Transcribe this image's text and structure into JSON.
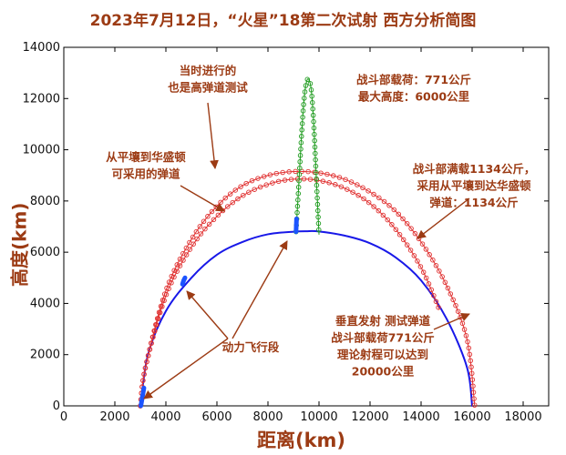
{
  "chart_data": {
    "type": "line",
    "title": "2023年7月12日，“火星”18第二次试射 西方分析简图",
    "xlabel": "距离(km)",
    "ylabel": "高度(km)",
    "xlim": [
      0,
      19000
    ],
    "ylim": [
      0,
      14000
    ],
    "xticks": [
      0,
      2000,
      4000,
      6000,
      8000,
      10000,
      12000,
      14000,
      16000,
      18000
    ],
    "yticks": [
      0,
      2000,
      4000,
      6000,
      8000,
      10000,
      12000,
      14000
    ],
    "grid": false,
    "series": [
      {
        "color": "#1818e8",
        "style": "solid",
        "x": [
          3000,
          3300,
          4000,
          5000,
          6000,
          7000,
          8000,
          9000,
          9500,
          10000,
          11000,
          12000,
          13000,
          14000,
          15000,
          15800,
          16000
        ],
        "y": [
          0,
          2000,
          3700,
          5000,
          5900,
          6400,
          6700,
          6800,
          6820,
          6810,
          6650,
          6350,
          5800,
          4900,
          3400,
          1500,
          0
        ]
      },
      {
        "color": "#e03030",
        "style": "circle-markers",
        "x": [
          3000,
          3200,
          4000,
          5000,
          6000,
          7000,
          8000,
          9000,
          10000,
          11000,
          12000,
          13000,
          14000,
          14700
        ],
        "y": [
          0,
          1500,
          4300,
          6200,
          7400,
          8200,
          8650,
          8850,
          8800,
          8500,
          7900,
          6900,
          5400,
          3800
        ]
      },
      {
        "color": "#e03030",
        "style": "circle-markers",
        "x": [
          3000,
          3200,
          4000,
          5000,
          6000,
          7000,
          8000,
          9000,
          10000,
          11000,
          12000,
          13000,
          14000,
          15000,
          15800,
          16100
        ],
        "y": [
          0,
          1500,
          4500,
          6500,
          7800,
          8600,
          9000,
          9150,
          9100,
          8850,
          8350,
          7600,
          6400,
          4700,
          2600,
          0
        ]
      },
      {
        "color": "#1c9a1c",
        "style": "circle-markers",
        "x": [
          9100,
          9200,
          9300,
          9400,
          9500,
          9600,
          9700,
          9800,
          9900,
          10000
        ],
        "y": [
          6800,
          8500,
          10300,
          11800,
          12600,
          12750,
          12300,
          10900,
          8800,
          6700
        ]
      },
      {
        "color": "#1c54ff",
        "style": "thick",
        "x": [
          3020,
          3080,
          3140
        ],
        "y": [
          0,
          350,
          700
        ]
      },
      {
        "color": "#1c54ff",
        "style": "thick",
        "x": [
          4650,
          4700,
          4750
        ],
        "y": [
          4750,
          4900,
          5000
        ]
      },
      {
        "color": "#1c54ff",
        "style": "thick",
        "x": [
          9100,
          9120
        ],
        "y": [
          6800,
          7300
        ]
      }
    ],
    "annotations": [
      {
        "lines": [
          "当时进行的",
          "也是高弹道测试"
        ]
      },
      {
        "lines": [
          "战斗部载荷：771公斤",
          "最大高度：6000公里"
        ]
      },
      {
        "lines": [
          "从平壤到华盛顿",
          "可采用的弹道"
        ]
      },
      {
        "lines": [
          "战斗部满载1134公斤，",
          "采用从平壤到达华盛顿",
          "弹道：1134公斤"
        ]
      },
      {
        "lines": [
          "动力飞行段"
        ]
      },
      {
        "lines": [
          "垂直发射  测试弹道",
          "战斗部载荷771公斤",
          "理论射程可以达到",
          "20000公里"
        ]
      }
    ]
  }
}
